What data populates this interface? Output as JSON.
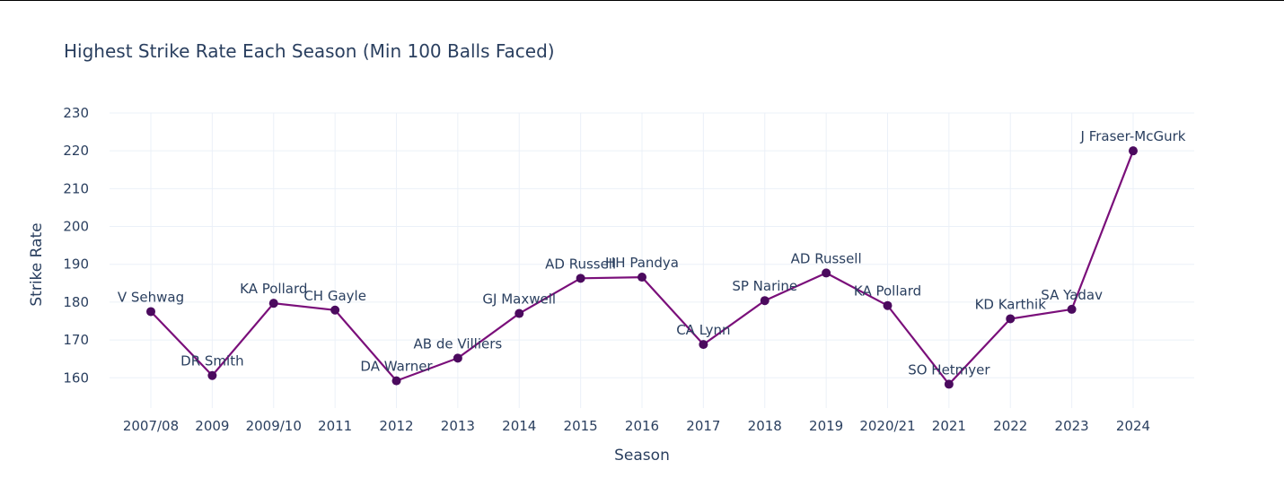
{
  "chart_data": {
    "type": "line",
    "title": "Highest Strike Rate Each Season (Min 100 Balls Faced)",
    "xlabel": "Season",
    "ylabel": "Strike Rate",
    "categories": [
      "2007/08",
      "2009",
      "2009/10",
      "2011",
      "2012",
      "2013",
      "2014",
      "2015",
      "2016",
      "2017",
      "2018",
      "2019",
      "2020/21",
      "2021",
      "2022",
      "2023",
      "2024"
    ],
    "values": [
      177.5,
      160.6,
      179.7,
      177.9,
      159.2,
      165.2,
      177.0,
      186.3,
      186.6,
      168.8,
      180.4,
      187.7,
      179.1,
      158.3,
      175.6,
      178.1,
      220.0
    ],
    "point_labels": [
      "V Sehwag",
      "DR Smith",
      "KA Pollard",
      "CH Gayle",
      "DA Warner",
      "AB de Villiers",
      "GJ Maxwell",
      "AD Russell",
      "HH Pandya",
      "CA Lynn",
      "SP Narine",
      "AD Russell",
      "KA Pollard",
      "SO Hetmyer",
      "KD Karthik",
      "SA Yadav",
      "J Fraser-McGurk"
    ],
    "yticks": [
      160,
      170,
      180,
      190,
      200,
      210,
      220,
      230
    ],
    "ylim": [
      152,
      230
    ],
    "grid": true,
    "colors": {
      "line": "#7a0f7a",
      "marker": "#4b0a5e",
      "grid": "#ebf0f8",
      "text": "#2a3f5f"
    }
  }
}
